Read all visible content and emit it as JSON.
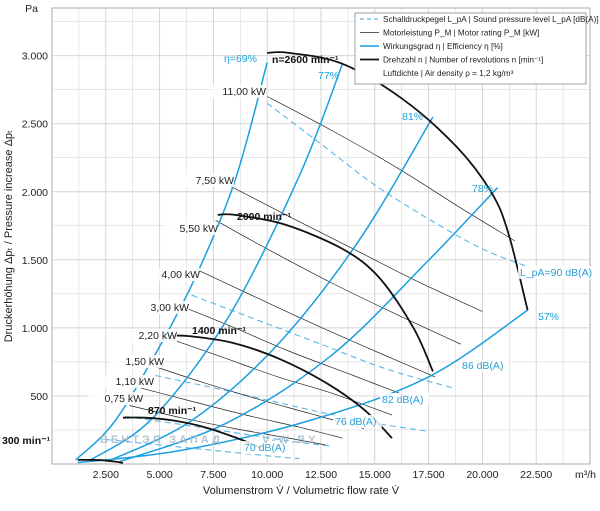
{
  "chart_data": {
    "type": "line",
    "y_unit": "Pa",
    "x_unit": "m³/h",
    "xlabel": "Volumenstrom V̇ / Volumetric flow rate V̇",
    "ylabel": "Druckerhöhung Δpₜ / Pressure increase Δpₜ",
    "xlim": [
      0,
      25000
    ],
    "ylim": [
      0,
      3350
    ],
    "x_ticks": [
      0,
      2500,
      5000,
      7500,
      10000,
      12500,
      15000,
      17500,
      20000,
      22500
    ],
    "x_tick_labels": [
      "",
      "2.500",
      "5.000",
      "7.500",
      "10.000",
      "12.500",
      "15.000",
      "17.500",
      "20.000",
      "22.500"
    ],
    "y_ticks": [
      0,
      500,
      1000,
      1500,
      2000,
      2500,
      3000
    ],
    "y_tick_labels": [
      "",
      "500",
      "1.000",
      "1.500",
      "2.000",
      "2.500",
      "3.000"
    ],
    "grid": true,
    "legend": {
      "position": "top-right",
      "entries": [
        {
          "style": "sound",
          "label": "Schalldruckpegel L_pA | Sound pressure level L_pA [dB(A)]"
        },
        {
          "style": "power",
          "label": "Motorleistung P_M | Motor rating P_M [kW]"
        },
        {
          "style": "efficiency",
          "label": "Wirkungsgrad η | Efficiency η [%]"
        },
        {
          "style": "rpm",
          "label": "Drehzahl n | Number of revolutions n [min⁻¹]"
        },
        {
          "style": "none",
          "label": "Luftdichte | Air density ρ = 1,2 kg/m³"
        }
      ]
    },
    "speed_curves": [
      {
        "name": "300 min⁻¹",
        "points": [
          [
            1200,
            30
          ],
          [
            1700,
            30
          ],
          [
            2300,
            28
          ],
          [
            2900,
            18
          ],
          [
            3300,
            8
          ]
        ]
      },
      {
        "name": "870 min⁻¹",
        "points": [
          [
            3300,
            340
          ],
          [
            4300,
            340
          ],
          [
            5600,
            320
          ],
          [
            7100,
            270
          ],
          [
            8600,
            190
          ],
          [
            9700,
            120
          ]
        ]
      },
      {
        "name": "1400 min⁻¹",
        "points": [
          [
            5400,
            940
          ],
          [
            6300,
            940
          ],
          [
            8400,
            890
          ],
          [
            10600,
            770
          ],
          [
            12800,
            590
          ],
          [
            14500,
            400
          ],
          [
            15800,
            190
          ]
        ]
      },
      {
        "name": "2000 min⁻¹",
        "points": [
          [
            7700,
            1830
          ],
          [
            8500,
            1830
          ],
          [
            10800,
            1760
          ],
          [
            13500,
            1580
          ],
          [
            15200,
            1370
          ],
          [
            16800,
            1000
          ],
          [
            17700,
            680
          ]
        ]
      },
      {
        "name": "2600 min⁻¹",
        "points": [
          [
            10000,
            3020
          ],
          [
            11000,
            3020
          ],
          [
            13500,
            2940
          ],
          [
            16300,
            2680
          ],
          [
            18800,
            2330
          ],
          [
            20400,
            2000
          ],
          [
            21200,
            1700
          ],
          [
            22100,
            1130
          ]
        ]
      }
    ],
    "system_curves": [
      {
        "name": "η=69%",
        "points": [
          [
            1100,
            30
          ],
          [
            2800,
            290
          ],
          [
            4600,
            750
          ],
          [
            6600,
            1350
          ],
          [
            8500,
            2080
          ],
          [
            10000,
            2950
          ]
        ]
      },
      {
        "name": "77%",
        "points": [
          [
            1800,
            30
          ],
          [
            4700,
            340
          ],
          [
            8200,
            1080
          ],
          [
            11500,
            2120
          ],
          [
            13500,
            2940
          ]
        ]
      },
      {
        "name": "81%",
        "points": [
          [
            2600,
            20
          ],
          [
            6500,
            320
          ],
          [
            10500,
            880
          ],
          [
            14300,
            1650
          ],
          [
            17700,
            2550
          ]
        ]
      },
      {
        "name": "78%",
        "points": [
          [
            3100,
            15
          ],
          [
            8100,
            300
          ],
          [
            13000,
            800
          ],
          [
            17400,
            1480
          ],
          [
            20700,
            2030
          ]
        ]
      },
      {
        "name": "57%",
        "points": [
          [
            1200,
            10
          ],
          [
            6000,
            100
          ],
          [
            12000,
            320
          ],
          [
            17500,
            640
          ],
          [
            22100,
            1130
          ]
        ]
      }
    ],
    "efficiency_labels": [
      "η=69%",
      "77%",
      "81%",
      "78%",
      "57%"
    ],
    "power_curves": [
      {
        "name": "11,00 kW",
        "points": [
          [
            10000,
            2700
          ],
          [
            13000,
            2450
          ],
          [
            16000,
            2180
          ],
          [
            19000,
            1880
          ],
          [
            21500,
            1640
          ]
        ]
      },
      {
        "name": "7,50 kW",
        "points": [
          [
            8300,
            2040
          ],
          [
            11000,
            1820
          ],
          [
            14000,
            1580
          ],
          [
            17000,
            1340
          ],
          [
            20000,
            1120
          ]
        ]
      },
      {
        "name": "5,50 kW",
        "points": [
          [
            7600,
            1790
          ],
          [
            10000,
            1580
          ],
          [
            13000,
            1330
          ],
          [
            16000,
            1100
          ],
          [
            19000,
            880
          ]
        ]
      },
      {
        "name": "4,00 kW",
        "points": [
          [
            6700,
            1430
          ],
          [
            9000,
            1260
          ],
          [
            12000,
            1040
          ],
          [
            15000,
            830
          ],
          [
            17800,
            640
          ]
        ]
      },
      {
        "name": "3,00 kW",
        "points": [
          [
            6000,
            1160
          ],
          [
            8500,
            1000
          ],
          [
            11000,
            830
          ],
          [
            14000,
            650
          ],
          [
            16800,
            480
          ]
        ]
      },
      {
        "name": "2,20 kW",
        "points": [
          [
            5300,
            930
          ],
          [
            8000,
            780
          ],
          [
            10500,
            640
          ],
          [
            13000,
            520
          ],
          [
            15800,
            360
          ]
        ]
      },
      {
        "name": "1,50 kW",
        "points": [
          [
            4700,
            720
          ],
          [
            7000,
            600
          ],
          [
            9500,
            480
          ],
          [
            12000,
            370
          ],
          [
            14500,
            260
          ]
        ]
      },
      {
        "name": "1,10 kW",
        "points": [
          [
            4100,
            560
          ],
          [
            6500,
            460
          ],
          [
            9000,
            360
          ],
          [
            11500,
            270
          ],
          [
            13500,
            190
          ]
        ]
      },
      {
        "name": "0,75 kW",
        "points": [
          [
            3600,
            430
          ],
          [
            6000,
            340
          ],
          [
            8500,
            260
          ],
          [
            11000,
            190
          ],
          [
            12700,
            140
          ]
        ]
      }
    ],
    "sound_curves": [
      {
        "name": "L_pA=90 dB(A)",
        "points": [
          [
            10000,
            2650
          ],
          [
            12500,
            2350
          ],
          [
            15000,
            2050
          ],
          [
            17500,
            1800
          ],
          [
            20000,
            1580
          ],
          [
            22100,
            1450
          ]
        ]
      },
      {
        "name": "86 dB(A)",
        "points": [
          [
            6500,
            1240
          ],
          [
            9500,
            1060
          ],
          [
            12500,
            880
          ],
          [
            15500,
            700
          ],
          [
            18600,
            560
          ]
        ]
      },
      {
        "name": "82 dB(A)",
        "points": [
          [
            4800,
            650
          ],
          [
            7500,
            560
          ],
          [
            10000,
            470
          ],
          [
            12500,
            380
          ],
          [
            15000,
            300
          ],
          [
            17500,
            240
          ]
        ]
      },
      {
        "name": "76 dB(A)",
        "points": [
          [
            3400,
            350
          ],
          [
            6000,
            290
          ],
          [
            8500,
            230
          ],
          [
            11000,
            170
          ],
          [
            13000,
            130
          ]
        ]
      },
      {
        "name": "70 dB(A)",
        "points": [
          [
            2500,
            180
          ],
          [
            5000,
            140
          ],
          [
            7500,
            100
          ],
          [
            10000,
            60
          ],
          [
            11500,
            40
          ]
        ]
      }
    ],
    "sound_labels": [
      "L_pA=90 dB(A)",
      "86 dB(A)",
      "82 dB(A)",
      "76 dB(A)",
      "70 dB(A)"
    ],
    "speed_labels": [
      "300 min⁻¹",
      "870 min⁻¹",
      "1400 min⁻¹",
      "2000 min⁻¹",
      "n=2600 min⁻¹"
    ],
    "power_labels": [
      "11,00 kW",
      "7,50 kW",
      "5,50 kW",
      "4,00 kW",
      "3,00 kW",
      "2,20 kW",
      "1,50 kW",
      "1,10 kW",
      "0,75 kW"
    ],
    "watermark_text": [
      "ВЕНТЭЛ ЗАПАД",
      "V-W.BY"
    ],
    "colors": {
      "speed": "#111111",
      "power": "#222222",
      "efficiency": "#1a9fe0",
      "sound": "#5bb8e6",
      "grid": "#d0d0d0"
    }
  }
}
